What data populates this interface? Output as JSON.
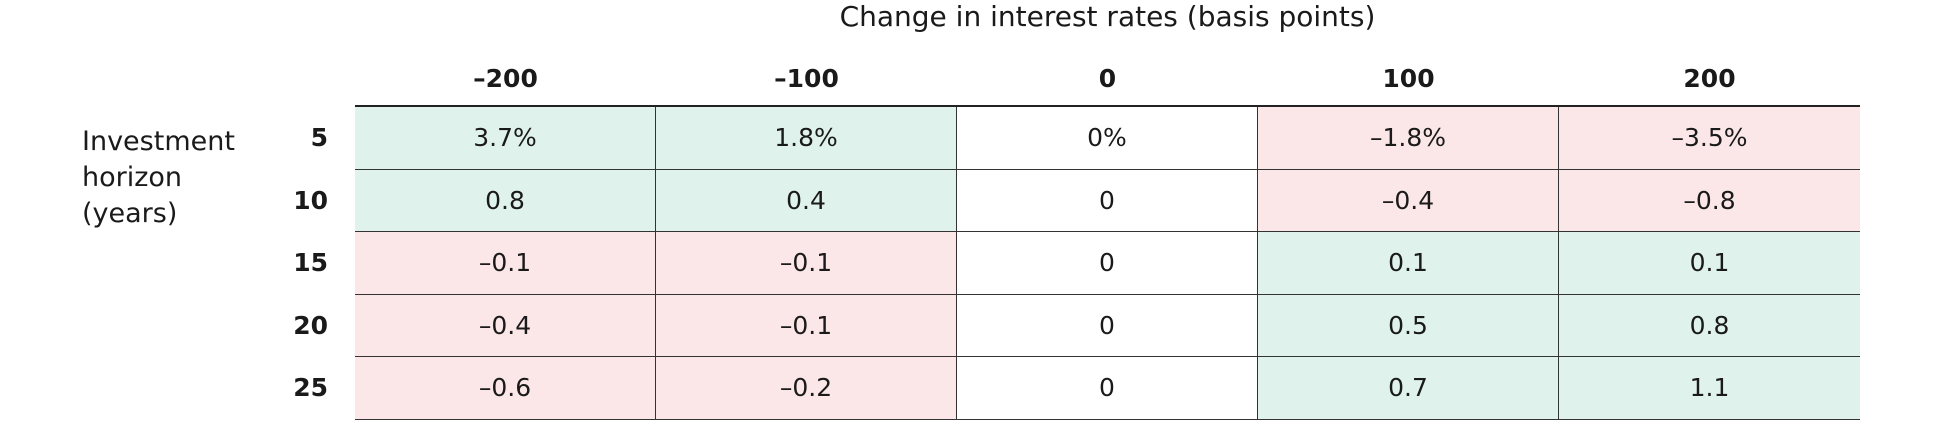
{
  "chart_data": {
    "type": "table",
    "title": "Change in interest rates (basis points)",
    "column_headers": [
      "–200",
      "–100",
      "0",
      "100",
      "200"
    ],
    "row_label": [
      "Investment",
      "horizon",
      "(years)"
    ],
    "row_headers": [
      "5",
      "10",
      "15",
      "20",
      "25"
    ],
    "cells": [
      [
        "3.7%",
        "1.8%",
        "0%",
        "–1.8%",
        "–3.5%"
      ],
      [
        "0.8",
        "0.4",
        "0",
        "–0.4",
        "–0.8"
      ],
      [
        "–0.1",
        "–0.1",
        "0",
        "0.1",
        "0.1"
      ],
      [
        "–0.4",
        "–0.1",
        "0",
        "0.5",
        "0.8"
      ],
      [
        "–0.6",
        "–0.2",
        "0",
        "0.7",
        "1.1"
      ]
    ],
    "values": [
      [
        3.7,
        1.8,
        0,
        -1.8,
        -3.5
      ],
      [
        0.8,
        0.4,
        0,
        -0.4,
        -0.8
      ],
      [
        -0.1,
        -0.1,
        0,
        0.1,
        0.1
      ],
      [
        -0.4,
        -0.1,
        0,
        0.5,
        0.8
      ],
      [
        -0.6,
        -0.2,
        0,
        0.7,
        1.1
      ]
    ],
    "colors": {
      "positive": "#dff3ec",
      "negative": "#fbe7e7",
      "zero": "#ffffff",
      "grid": "#333333"
    }
  }
}
